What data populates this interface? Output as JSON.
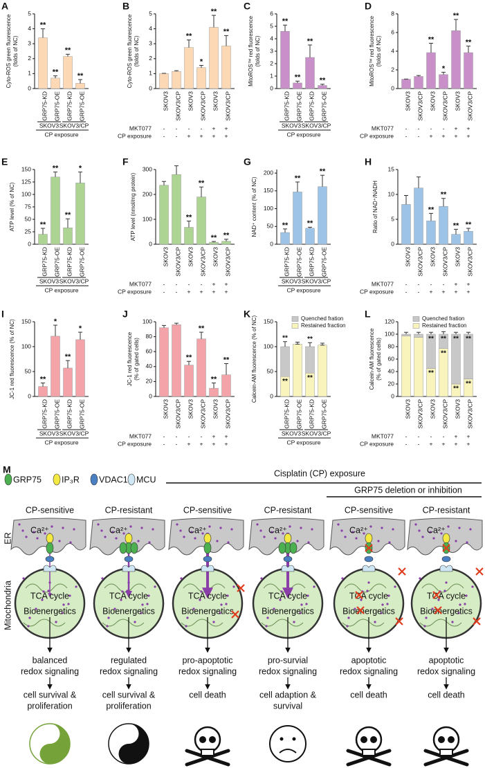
{
  "chart_data": [
    {
      "type": "bar",
      "panel": "A",
      "ylabel": [
        "Cyto-ROS green fluorescence",
        "(folds of NC)"
      ],
      "color": "#fcd9b4",
      "categories": [
        "GRP75-KD",
        "GRP75-OE",
        "GRP75-KD",
        "GRP75-OE"
      ],
      "values": [
        3.4,
        0.7,
        2.15,
        0.35
      ],
      "errors": [
        0.6,
        0.15,
        0.15,
        0.25
      ],
      "stars": [
        "**",
        "**",
        "**",
        "**"
      ],
      "ylim": [
        0,
        5
      ],
      "yticks": [
        0,
        1,
        2,
        3,
        4,
        5
      ],
      "groups": [
        "SKOV3",
        "SKOV3/CP"
      ],
      "footer": "CP exposure"
    },
    {
      "type": "bar",
      "panel": "B",
      "ylabel": [
        "Cyto-ROS green fluorescence",
        "(folds of NC)"
      ],
      "color": "#fcd9b4",
      "categories": [
        "SKOV3",
        "SKOV3/CP",
        "SKOV3",
        "SKOV3/CP",
        "SKOV3",
        "SKOV3/CP"
      ],
      "values": [
        1.0,
        1.15,
        2.75,
        1.4,
        4.1,
        2.85
      ],
      "errors": [
        0.02,
        0.05,
        0.5,
        0.15,
        0.8,
        0.7
      ],
      "stars": [
        null,
        null,
        "**",
        "*",
        "**",
        "**"
      ],
      "ylim": [
        0,
        5
      ],
      "yticks": [
        0,
        1,
        2,
        3,
        4,
        5
      ],
      "treatments": [
        {
          "name": "MKT077",
          "values": [
            "-",
            "-",
            "-",
            "-",
            "+",
            "+"
          ]
        },
        {
          "name": "CP exposure",
          "values": [
            "-",
            "-",
            "+",
            "+",
            "+",
            "+"
          ]
        }
      ]
    },
    {
      "type": "bar",
      "panel": "C",
      "ylabel": [
        "MitoROS™ red fluorescence",
        "(folds of NC)"
      ],
      "color": "#c88fc8",
      "categories": [
        "GRP75-KD",
        "GRP75-OE",
        "GRP75-KD",
        "GRP75-OE"
      ],
      "values": [
        4.6,
        0.45,
        2.5,
        0.25
      ],
      "errors": [
        0.5,
        0.15,
        1.0,
        0.1
      ],
      "stars": [
        "**",
        "**",
        "**",
        "**"
      ],
      "ylim": [
        0,
        6
      ],
      "yticks": [
        0,
        1,
        2,
        3,
        4,
        5,
        6
      ],
      "groups": [
        "SKOV3",
        "SKOV3/CP"
      ],
      "footer": "CP exposure"
    },
    {
      "type": "bar",
      "panel": "D",
      "ylabel": [
        "MitoROS™ red fluorescence",
        "(folds of NC)"
      ],
      "color": "#c88fc8",
      "categories": [
        "SKOV3",
        "SKOV3/CP",
        "SKOV3",
        "SKOV3/CP",
        "SKOV3",
        "SKOV3/CP"
      ],
      "values": [
        1.0,
        1.3,
        3.85,
        1.5,
        6.2,
        3.85
      ],
      "errors": [
        0.02,
        0.1,
        1.0,
        0.25,
        1.2,
        0.7
      ],
      "stars": [
        null,
        null,
        "**",
        "*",
        "**",
        "**"
      ],
      "ylim": [
        0,
        8
      ],
      "yticks": [
        0,
        2,
        4,
        6,
        8
      ],
      "treatments": [
        {
          "name": "MKT077",
          "values": [
            "-",
            "-",
            "-",
            "-",
            "+",
            "+"
          ]
        },
        {
          "name": "CP exposure",
          "values": [
            "-",
            "-",
            "+",
            "+",
            "+",
            "+"
          ]
        }
      ]
    },
    {
      "type": "bar",
      "panel": "E",
      "ylabel": [
        "ATP level (% of NC)"
      ],
      "color": "#aed494",
      "categories": [
        "GRP75-KD",
        "GRP75-OE",
        "GRP75-KD",
        "GRP75-OE"
      ],
      "values": [
        20,
        135,
        33,
        123
      ],
      "errors": [
        12,
        10,
        18,
        22
      ],
      "stars": [
        "**",
        "**",
        "**",
        "*"
      ],
      "ylim": [
        0,
        150
      ],
      "yticks": [
        0,
        25,
        50,
        75,
        100,
        125,
        150
      ],
      "groups": [
        "SKOV3",
        "SKOV3/CP"
      ],
      "footer": "CP exposure"
    },
    {
      "type": "bar",
      "panel": "F",
      "ylabel": [
        "ATP level (nmol/mg protein)"
      ],
      "color": "#aed494",
      "categories": [
        "SKOV3",
        "SKOV3/CP",
        "SKOV3",
        "SKOV3/CP",
        "SKOV3",
        "SKOV3/CP"
      ],
      "values": [
        237,
        280,
        68,
        190,
        8,
        12
      ],
      "errors": [
        15,
        35,
        25,
        40,
        3,
        8
      ],
      "stars": [
        null,
        null,
        "**",
        "**",
        "**",
        "**"
      ],
      "ylim": [
        0,
        300
      ],
      "yticks": [
        0,
        100,
        200,
        300
      ],
      "treatments": [
        {
          "name": "MKT077",
          "values": [
            "-",
            "-",
            "-",
            "-",
            "+",
            "+"
          ]
        },
        {
          "name": "CP exposure",
          "values": [
            "-",
            "-",
            "+",
            "+",
            "+",
            "+"
          ]
        }
      ]
    },
    {
      "type": "bar",
      "panel": "G",
      "ylabel": [
        "NAD⁺ content (% of NC)"
      ],
      "color": "#9dc3e6",
      "categories": [
        "GRP75-KD",
        "GRP75-OE",
        "GRP75-KD",
        "GRP75-OE"
      ],
      "values": [
        33,
        147,
        45,
        162
      ],
      "errors": [
        10,
        28,
        3,
        32
      ],
      "stars": [
        "**",
        "**",
        "**",
        "**"
      ],
      "ylim": [
        0,
        210
      ],
      "yticks": [
        0,
        50,
        100,
        150,
        200
      ],
      "groups": [
        "SKOV3",
        "SKOV3/CP"
      ],
      "footer": "CP exposure"
    },
    {
      "type": "bar",
      "panel": "H",
      "ylabel": [
        "Ratio of NAD⁺/NADH"
      ],
      "color": "#9dc3e6",
      "categories": [
        "SKOV3",
        "SKOV3/CP",
        "SKOV3",
        "SKOV3/CP",
        "SKOV3",
        "SKOV3/CP"
      ],
      "values": [
        8,
        11.3,
        4.7,
        7.6,
        2.0,
        2.6
      ],
      "errors": [
        1.8,
        2.2,
        1.5,
        1.6,
        1.0,
        0.6
      ],
      "stars": [
        null,
        null,
        "**",
        "**",
        "**",
        "**"
      ],
      "ylim": [
        0,
        15
      ],
      "yticks": [
        0,
        5,
        10,
        15
      ],
      "treatments": [
        {
          "name": "MKT077",
          "values": [
            "-",
            "-",
            "-",
            "-",
            "+",
            "+"
          ]
        },
        {
          "name": "CP exposure",
          "values": [
            "-",
            "-",
            "+",
            "+",
            "+",
            "+"
          ]
        }
      ]
    },
    {
      "type": "bar",
      "panel": "I",
      "ylabel": [
        "JC-1 red fluorescence (% of NC)"
      ],
      "color": "#f4a3a8",
      "categories": [
        "GRP75-KD",
        "GRP75-OE",
        "GRP75-KD",
        "GRP75-OE"
      ],
      "values": [
        20,
        121,
        57,
        114
      ],
      "errors": [
        7,
        22,
        15,
        15
      ],
      "stars": [
        "**",
        "*",
        "**",
        "*"
      ],
      "ylim": [
        0,
        150
      ],
      "yticks": [
        0,
        50,
        100,
        150
      ],
      "groups": [
        "SKOV3",
        "SKOV3/CP"
      ],
      "footer": "CP exposure"
    },
    {
      "type": "bar",
      "panel": "J",
      "ylabel": [
        "JC-1 red fluorescence",
        "(% of gated cells)"
      ],
      "color": "#f4a3a8",
      "categories": [
        "SKOV3",
        "SKOV3/CP",
        "SKOV3",
        "SKOV3/CP",
        "SKOV3",
        "SKOV3/CP"
      ],
      "values": [
        92,
        96,
        42,
        77,
        11,
        29
      ],
      "errors": [
        3,
        2,
        5,
        9,
        7,
        15
      ],
      "stars": [
        null,
        null,
        "**",
        "**",
        "**",
        "**"
      ],
      "ylim": [
        0,
        100
      ],
      "yticks": [
        0,
        20,
        40,
        60,
        80,
        100
      ],
      "treatments": [
        {
          "name": "MKT077",
          "values": [
            "-",
            "-",
            "-",
            "-",
            "+",
            "+"
          ]
        },
        {
          "name": "CP exposure",
          "values": [
            "-",
            "-",
            "+",
            "+",
            "+",
            "+"
          ]
        }
      ]
    },
    {
      "type": "stacked",
      "panel": "K",
      "ylabel": [
        "Calcein-AM  fluorescence (% of NC)"
      ],
      "categories": [
        "GRP75-KD",
        "GRP75-OE",
        "GRP75-KD",
        "GRP75-OE"
      ],
      "series": [
        {
          "name": "Quenched fration",
          "color": "#c8c8c8",
          "values": [
            60,
            0,
            53,
            0
          ],
          "errors": [
            10,
            0,
            8,
            0
          ],
          "stars": [
            "**",
            null,
            "**",
            null
          ]
        },
        {
          "name": "Restained fraction",
          "color": "#f8f4bc",
          "values": [
            40,
            105,
            47,
            103
          ],
          "errors": [
            8,
            4,
            4,
            4
          ],
          "stars": [
            "**",
            null,
            "**",
            null
          ]
        }
      ],
      "ylim": [
        0,
        150
      ],
      "yticks": [
        0,
        50,
        100,
        150
      ],
      "groups": [
        "SKOV3",
        "SKOV3/CP"
      ],
      "footer": "CP exposure"
    },
    {
      "type": "stacked",
      "panel": "L",
      "ylabel": [
        "Calcein-AM fluorescence",
        "(% of gated cells)"
      ],
      "categories": [
        "SKOV3",
        "SKOV3/CP",
        "SKOV3",
        "SKOV3/CP",
        "SKOV3",
        "SKOV3/CP"
      ],
      "series": [
        {
          "name": "Quenched fration",
          "color": "#c8c8c8",
          "values": [
            3,
            5,
            55,
            23,
            80,
            72
          ],
          "errors": [
            3,
            3,
            3,
            4,
            3,
            3
          ],
          "stars": [
            null,
            null,
            "**",
            "**",
            "**",
            "**"
          ]
        },
        {
          "name": "Restained fraction",
          "color": "#f8f4bc",
          "values": [
            97,
            95,
            45,
            77,
            20,
            28
          ],
          "errors": [
            2,
            4,
            5,
            8,
            6,
            5
          ],
          "stars": [
            null,
            null,
            "**",
            "**",
            "**",
            "**"
          ]
        }
      ],
      "ylim": [
        0,
        120
      ],
      "yticks": [
        0,
        20,
        40,
        60,
        80,
        100,
        120
      ],
      "treatments": [
        {
          "name": "MKT077",
          "values": [
            "-",
            "-",
            "-",
            "-",
            "+",
            "+"
          ]
        },
        {
          "name": "CP exposure",
          "values": [
            "-",
            "-",
            "+",
            "+",
            "+",
            "+"
          ]
        }
      ]
    }
  ],
  "diagram": {
    "panel": "M",
    "legend": [
      "GRP75",
      "IP₃R",
      "VDAC1",
      "MCU"
    ],
    "exposure": "Cisplatin (CP) exposure",
    "inhibition": "GRP75 deletion or inhibition",
    "er": "ER",
    "mito": "Mitochondria",
    "columns": [
      {
        "title": "CP-sensitive",
        "ca": "Ca²⁺",
        "tca": "TCA cycle",
        "bio": "Bioenergetics",
        "signal": [
          "balanced",
          "redox signaling"
        ],
        "fate": [
          "cell survival &",
          "proliferation"
        ]
      },
      {
        "title": "CP-resistant",
        "ca": "Ca²⁺",
        "tca": "TCA cycle",
        "bio": "Bioenergetics",
        "signal": [
          "regulated",
          "redox signaling"
        ],
        "fate": [
          "cell survival &",
          "proliferation"
        ]
      },
      {
        "title": "CP-sensitive",
        "ca": "Ca²⁺",
        "tca": "TCA cycle",
        "bio": "Bioenergetics",
        "signal": [
          "pro-apoptotic",
          "redox signaling"
        ],
        "fate": [
          "cell death"
        ]
      },
      {
        "title": "CP-resistant",
        "ca": "Ca²⁺",
        "tca": "TCA cycle",
        "bio": "Bioenergetics",
        "signal": [
          "pro-survial",
          "redox signaling"
        ],
        "fate": [
          "cell adaption &",
          "survival"
        ]
      },
      {
        "title": "CP-sensitive",
        "ca": "Ca²⁺",
        "tca": "TCA cycle",
        "bio": "Bioenergetics",
        "signal": [
          "apoptotic",
          "redox signaling"
        ],
        "fate": [
          "cell death"
        ]
      },
      {
        "title": "CP-resistant",
        "ca": "Ca²⁺",
        "tca": "TCA cycle",
        "bio": "Bioenergetics",
        "signal": [
          "apoptotic",
          "redox signaling"
        ],
        "fate": [
          "cell death"
        ]
      }
    ]
  }
}
